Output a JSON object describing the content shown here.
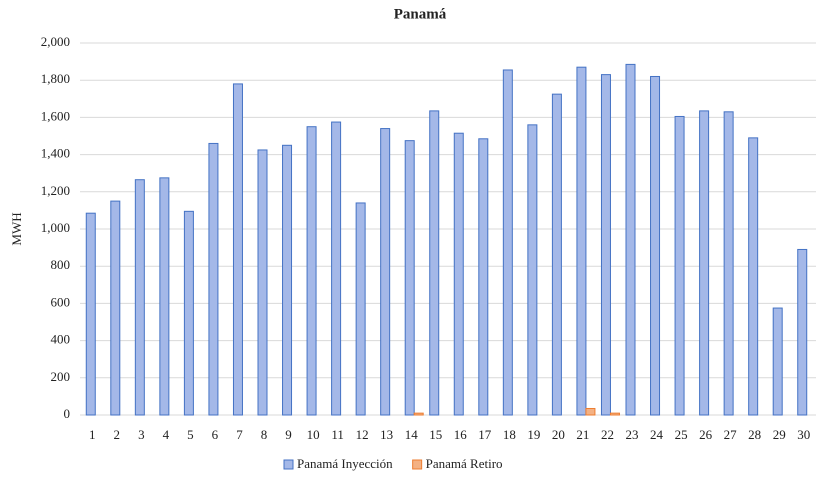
{
  "chart_data": {
    "type": "bar",
    "title": "Panamá",
    "y_label": "MWH",
    "categories": [
      "1",
      "2",
      "3",
      "4",
      "5",
      "6",
      "7",
      "8",
      "9",
      "10",
      "11",
      "12",
      "13",
      "14",
      "15",
      "16",
      "17",
      "18",
      "19",
      "20",
      "21",
      "22",
      "23",
      "24",
      "25",
      "26",
      "27",
      "28",
      "29",
      "30"
    ],
    "series": [
      {
        "name": "Panamá Inyección",
        "color": "#a4b8e8",
        "stroke": "#4472c4",
        "values": [
          1085,
          1150,
          1265,
          1275,
          1095,
          1460,
          1780,
          1425,
          1450,
          1550,
          1575,
          1140,
          1540,
          1475,
          1635,
          1515,
          1485,
          1855,
          1560,
          1725,
          1870,
          1830,
          1885,
          1820,
          1605,
          1635,
          1630,
          1490,
          575,
          890
        ]
      },
      {
        "name": "Panamá Retiro",
        "color": "#f4b183",
        "stroke": "#ed7d31",
        "values": [
          0,
          0,
          0,
          0,
          0,
          0,
          0,
          0,
          0,
          0,
          0,
          0,
          0,
          10,
          0,
          0,
          0,
          0,
          0,
          0,
          35,
          10,
          0,
          0,
          0,
          0,
          0,
          0,
          0,
          0
        ]
      }
    ],
    "ylim": [
      0,
      2000
    ],
    "yticks": [
      0,
      200,
      400,
      600,
      800,
      {
        "value": 1000,
        "label": "1,000"
      },
      {
        "value": 1200,
        "label": "1,200"
      },
      {
        "value": 1400,
        "label": "1,400"
      },
      {
        "value": 1600,
        "label": "1,600"
      },
      {
        "value": 1800,
        "label": "1,800"
      },
      {
        "value": 2000,
        "label": "2,000"
      }
    ],
    "grid": true,
    "legend": "bottom"
  }
}
